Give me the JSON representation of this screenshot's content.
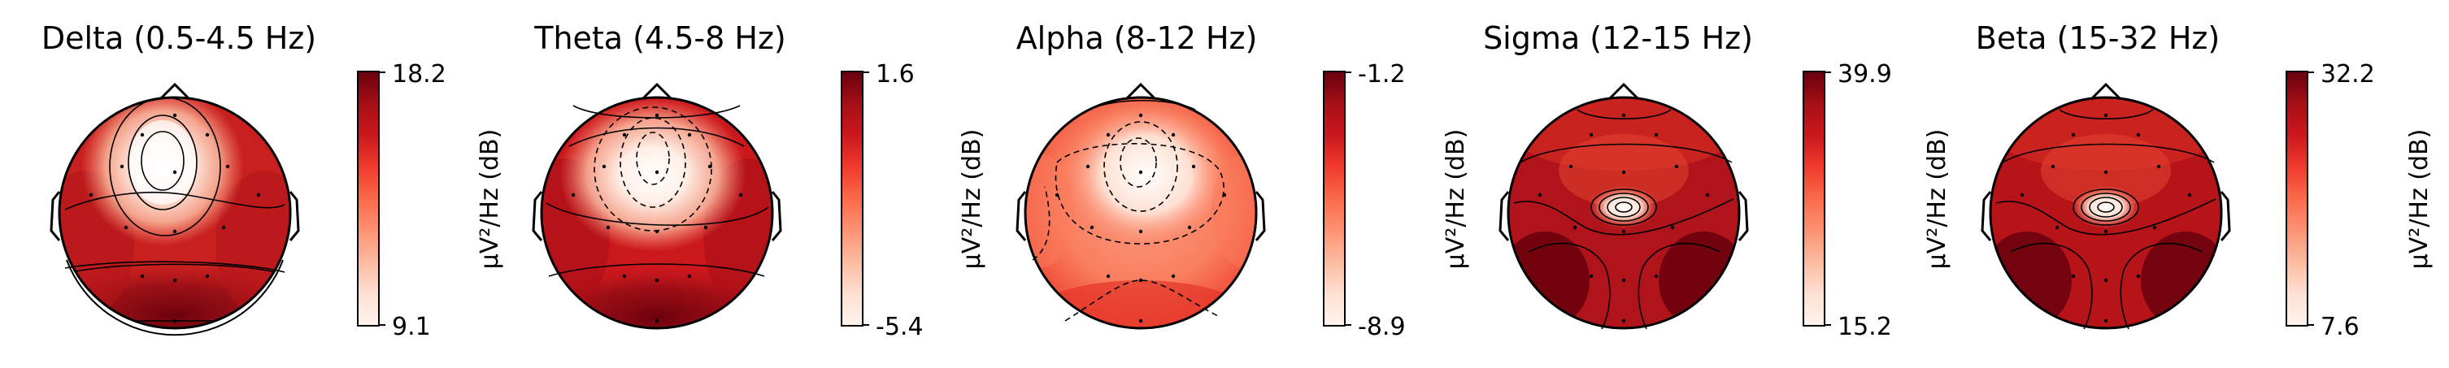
{
  "chart_data": [
    {
      "type": "heatmap",
      "subtype": "eeg-topomap",
      "title": "Delta (0.5-4.5 Hz)",
      "colorbar": {
        "max_label": "18.2",
        "min_label": "9.1",
        "label": "µV²/Hz (dB)",
        "colormap": "Reds"
      },
      "hotspots": [
        {
          "region": "frontal-center",
          "level": 0.0
        },
        {
          "region": "occipital",
          "level": 1.0
        }
      ]
    },
    {
      "type": "heatmap",
      "subtype": "eeg-topomap",
      "title": "Theta (4.5-8 Hz)",
      "colorbar": {
        "max_label": "1.6",
        "min_label": "-5.4",
        "label": "µV²/Hz (dB)",
        "colormap": "Reds"
      },
      "hotspots": [
        {
          "region": "frontal-center",
          "level": 0.0
        },
        {
          "region": "occipital",
          "level": 0.9
        }
      ]
    },
    {
      "type": "heatmap",
      "subtype": "eeg-topomap",
      "title": "Alpha (8-12 Hz)",
      "colorbar": {
        "max_label": "-1.2",
        "min_label": "-8.9",
        "label": "µV²/Hz (dB)",
        "colormap": "Reds"
      },
      "hotspots": [
        {
          "region": "frontal-center",
          "level": 0.0
        },
        {
          "region": "occipital",
          "level": 0.6
        }
      ]
    },
    {
      "type": "heatmap",
      "subtype": "eeg-topomap",
      "title": "Sigma (12-15 Hz)",
      "colorbar": {
        "max_label": "39.9",
        "min_label": "15.2",
        "label": "µV²/Hz (dB)",
        "colormap": "Reds"
      },
      "hotspots": [
        {
          "region": "central",
          "level": 0.0
        },
        {
          "region": "occipital",
          "level": 1.0
        }
      ]
    },
    {
      "type": "heatmap",
      "subtype": "eeg-topomap",
      "title": "Beta (15-32 Hz)",
      "colorbar": {
        "max_label": "32.2",
        "min_label": "7.6",
        "label": "µV²/Hz (dB)",
        "colormap": "Reds"
      },
      "hotspots": [
        {
          "region": "central",
          "level": 0.0
        },
        {
          "region": "occipital",
          "level": 1.0
        }
      ]
    }
  ]
}
